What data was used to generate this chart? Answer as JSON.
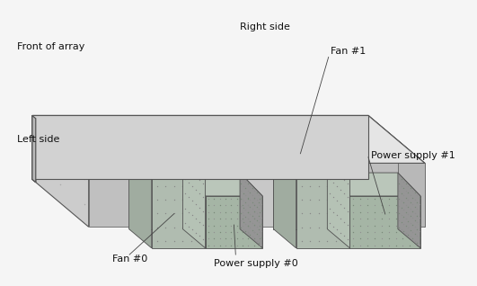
{
  "background_color": "#f5f5f5",
  "labels": {
    "front_of_array": "Front of array",
    "right_side": "Right side",
    "left_side": "Left side",
    "fan0": "Fan #0",
    "fan1": "Fan #1",
    "power_supply0": "Power supply #0",
    "power_supply1": "Power supply #1"
  },
  "colors": {
    "outline": "#555555",
    "chassis_top": "#e8e8e8",
    "chassis_left": "#d8d8d8",
    "chassis_right": "#c8c8c8",
    "chassis_front": "#d0d0d0",
    "front_panel": "#c0c0c0",
    "back_panel": "#b0b0b0",
    "fan_top": "#c0ccc0",
    "fan_face": "#b0bcb0",
    "fan_side": "#a0aca0",
    "ps_top": "#b8c4b8",
    "ps_face": "#a8b4a8",
    "ps_side": "#989898",
    "screw": "#aaaaaa"
  },
  "fig_width": 5.31,
  "fig_height": 3.18,
  "dpi": 100
}
